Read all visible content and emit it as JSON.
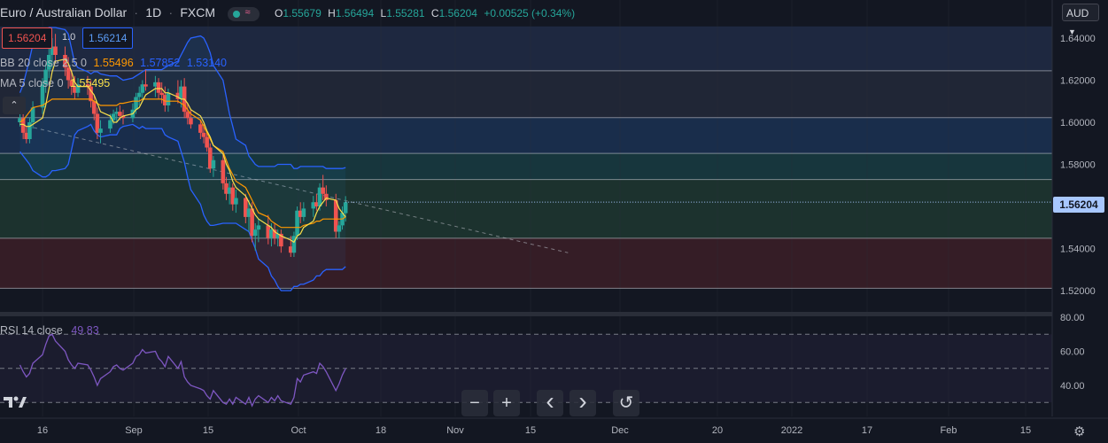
{
  "header": {
    "symbol": "Euro / Australian Dollar",
    "interval": "1D",
    "exchange": "FXCM",
    "ohlc": {
      "o_label": "O",
      "o": "1.55679",
      "h_label": "H",
      "h": "1.56494",
      "l_label": "L",
      "l": "1.55281",
      "c_label": "C",
      "c": "1.56204",
      "change": "+0.00525 (+0.34%)"
    }
  },
  "trade": {
    "sell": "1.56204",
    "spread": "1.0",
    "buy": "1.56214"
  },
  "indicators": {
    "bb": {
      "label": "BB 20 close 2.5 0",
      "basis": "1.55496",
      "upper": "1.57852",
      "lower": "1.53140"
    },
    "ma": {
      "label": "MA 5 close 0",
      "value": "1.55495"
    },
    "rsi": {
      "label": "RSI 14 close",
      "value": "49.83"
    }
  },
  "currency_selector": "AUD",
  "last_price_label": "1.56204",
  "price_axis": [
    "1.64000",
    "1.62000",
    "1.60000",
    "1.58000",
    "1.56000",
    "1.54000",
    "1.52000"
  ],
  "rsi_axis": [
    "80.00",
    "60.00",
    "40.00"
  ],
  "time_axis": [
    "16",
    "Sep",
    "15",
    "Oct",
    "18",
    "Nov",
    "15",
    "Dec",
    "20",
    "2022",
    "17",
    "Feb",
    "15"
  ],
  "nav_buttons": {
    "zoom_out": "−",
    "zoom_in": "+",
    "scroll_left": "‹",
    "scroll_right": "›",
    "reset": "↺"
  },
  "colors": {
    "background": "#131722",
    "up": "#26a69a",
    "down": "#ef5350",
    "bb_band": "#2962ff",
    "bb_basis": "#ff9800",
    "ma": "#f9e04b",
    "rsi": "#7e57c2",
    "last_price": "#a8c7ff"
  },
  "chart_data": [
    {
      "type": "candlestick",
      "title": "Euro / Australian Dollar · 1D · FXCM",
      "ylim": [
        1.51,
        1.65
      ],
      "price_levels": [
        1.6245,
        1.6022,
        1.5852,
        1.5728,
        1.5449,
        1.5211
      ],
      "trendline": {
        "from": [
          "Aug 9",
          1.599
        ],
        "to": [
          "Jan 26",
          1.538
        ]
      },
      "series": [
        {
          "name": "price",
          "points": [
            [
              "Aug 9",
              1.6,
              1.61,
              1.598,
              1.602
            ],
            [
              "Aug 10",
              1.602,
              1.604,
              1.592,
              1.595
            ],
            [
              "Aug 11",
              1.595,
              1.598,
              1.59,
              1.592
            ],
            [
              "Aug 12",
              1.592,
              1.602,
              1.59,
              1.6
            ],
            [
              "Aug 13",
              1.6,
              1.61,
              1.597,
              1.607
            ],
            [
              "Aug 16",
              1.607,
              1.621,
              1.604,
              1.618
            ],
            [
              "Aug 17",
              1.618,
              1.628,
              1.614,
              1.625
            ],
            [
              "Aug 18",
              1.625,
              1.636,
              1.621,
              1.632
            ],
            [
              "Aug 19",
              1.632,
              1.64,
              1.626,
              1.636
            ],
            [
              "Aug 20",
              1.636,
              1.642,
              1.628,
              1.632
            ],
            [
              "Aug 23",
              1.632,
              1.636,
              1.622,
              1.626
            ],
            [
              "Aug 24",
              1.626,
              1.631,
              1.616,
              1.62
            ],
            [
              "Aug 25",
              1.62,
              1.625,
              1.613,
              1.617
            ],
            [
              "Aug 26",
              1.617,
              1.622,
              1.611,
              1.614
            ],
            [
              "Aug 27",
              1.614,
              1.621,
              1.612,
              1.618
            ],
            [
              "Aug 30",
              1.618,
              1.622,
              1.613,
              1.617
            ],
            [
              "Aug 31",
              1.617,
              1.62,
              1.607,
              1.61
            ],
            [
              "Sep 1",
              1.61,
              1.613,
              1.601,
              1.604
            ],
            [
              "Sep 2",
              1.604,
              1.607,
              1.592,
              1.595
            ],
            [
              "Sep 3",
              1.595,
              1.601,
              1.59,
              1.597
            ],
            [
              "Sep 6",
              1.597,
              1.604,
              1.595,
              1.601
            ],
            [
              "Sep 7",
              1.601,
              1.606,
              1.599,
              1.604
            ],
            [
              "Sep 8",
              1.604,
              1.607,
              1.6,
              1.605
            ],
            [
              "Sep 9",
              1.605,
              1.608,
              1.601,
              1.603
            ],
            [
              "Sep 10",
              1.603,
              1.606,
              1.599,
              1.602
            ],
            [
              "Sep 13",
              1.602,
              1.609,
              1.6,
              1.606
            ],
            [
              "Sep 14",
              1.606,
              1.614,
              1.604,
              1.612
            ],
            [
              "Sep 15",
              1.612,
              1.617,
              1.608,
              1.614
            ],
            [
              "Sep 16",
              1.614,
              1.62,
              1.611,
              1.618
            ],
            [
              "Sep 17",
              1.618,
              1.625,
              1.615,
              1.617
            ],
            [
              "Sep 20",
              1.617,
              1.622,
              1.612,
              1.619
            ],
            [
              "Sep 21",
              1.619,
              1.621,
              1.611,
              1.614
            ],
            [
              "Sep 22",
              1.614,
              1.619,
              1.609,
              1.613
            ],
            [
              "Sep 23",
              1.613,
              1.617,
              1.605,
              1.608
            ],
            [
              "Sep 24",
              1.608,
              1.616,
              1.605,
              1.614
            ],
            [
              "Sep 27",
              1.614,
              1.62,
              1.609,
              1.611
            ],
            [
              "Sep 28",
              1.611,
              1.62,
              1.607,
              1.617
            ],
            [
              "Sep 29",
              1.617,
              1.621,
              1.602,
              1.605
            ],
            [
              "Sep 30",
              1.605,
              1.609,
              1.599,
              1.602
            ],
            [
              "Oct 1",
              1.602,
              1.606,
              1.597,
              1.599
            ],
            [
              "Oct 4",
              1.599,
              1.601,
              1.592,
              1.595
            ],
            [
              "Oct 5",
              1.595,
              1.599,
              1.59,
              1.593
            ],
            [
              "Oct 6",
              1.593,
              1.595,
              1.586,
              1.588
            ],
            [
              "Oct 7",
              1.588,
              1.59,
              1.576,
              1.578
            ],
            [
              "Oct 8",
              1.578,
              1.584,
              1.574,
              1.582
            ],
            [
              "Oct 11",
              1.582,
              1.585,
              1.568,
              1.571
            ],
            [
              "Oct 12",
              1.571,
              1.574,
              1.563,
              1.566
            ],
            [
              "Oct 13",
              1.566,
              1.572,
              1.561,
              1.569
            ],
            [
              "Oct 14",
              1.569,
              1.571,
              1.558,
              1.561
            ],
            [
              "Oct 15",
              1.561,
              1.568,
              1.557,
              1.564
            ],
            [
              "Oct 18",
              1.564,
              1.566,
              1.552,
              1.555
            ],
            [
              "Oct 19",
              1.555,
              1.563,
              1.548,
              1.559
            ],
            [
              "Oct 20",
              1.559,
              1.562,
              1.543,
              1.546
            ],
            [
              "Oct 21",
              1.546,
              1.552,
              1.539,
              1.549
            ],
            [
              "Oct 22",
              1.549,
              1.554,
              1.543,
              1.551
            ],
            [
              "Oct 25",
              1.551,
              1.556,
              1.542,
              1.545
            ],
            [
              "Oct 26",
              1.545,
              1.552,
              1.541,
              1.549
            ],
            [
              "Oct 27",
              1.549,
              1.552,
              1.542,
              1.545
            ],
            [
              "Oct 28",
              1.545,
              1.549,
              1.541,
              1.547
            ],
            [
              "Oct 29",
              1.547,
              1.549,
              1.538,
              1.541
            ],
            [
              "Nov 1",
              1.541,
              1.546,
              1.536,
              1.538
            ],
            [
              "Nov 2",
              1.538,
              1.548,
              1.536,
              1.546
            ],
            [
              "Nov 3",
              1.546,
              1.56,
              1.544,
              1.558
            ],
            [
              "Nov 4",
              1.558,
              1.562,
              1.552,
              1.555
            ],
            [
              "Nov 5",
              1.555,
              1.562,
              1.553,
              1.559
            ],
            [
              "Nov 8",
              1.559,
              1.565,
              1.555,
              1.562
            ],
            [
              "Nov 9",
              1.562,
              1.566,
              1.558,
              1.56
            ],
            [
              "Nov 10",
              1.56,
              1.571,
              1.558,
              1.569
            ],
            [
              "Nov 11",
              1.569,
              1.575,
              1.563,
              1.566
            ],
            [
              "Nov 12",
              1.566,
              1.57,
              1.56,
              1.563
            ],
            [
              "Nov 15",
              1.563,
              1.566,
              1.545,
              1.548
            ],
            [
              "Nov 16",
              1.548,
              1.553,
              1.545,
              1.551
            ],
            [
              "Nov 17",
              1.551,
              1.56,
              1.549,
              1.557
            ],
            [
              "Nov 18",
              1.5568,
              1.5649,
              1.5528,
              1.562
            ]
          ]
        },
        {
          "name": "BB 20 close 2.5 0 (basis)",
          "values": [
            1.6,
            1.601,
            1.603,
            1.605,
            1.607,
            1.608,
            1.609,
            1.61,
            1.611,
            1.611,
            1.611,
            1.611,
            1.611,
            1.611,
            1.611,
            1.611,
            1.611,
            1.61,
            1.609,
            1.608,
            1.608,
            1.608,
            1.608,
            1.609,
            1.609,
            1.61,
            1.61,
            1.61,
            1.611,
            1.611,
            1.611,
            1.611,
            1.611,
            1.61,
            1.61,
            1.61,
            1.609,
            1.608,
            1.606,
            1.604,
            1.601,
            1.598,
            1.595,
            1.592,
            1.589,
            1.586,
            1.582,
            1.578,
            1.575,
            1.572,
            1.569,
            1.566,
            1.563,
            1.56,
            1.557,
            1.555,
            1.553,
            1.552,
            1.551,
            1.55,
            1.55,
            1.55,
            1.55,
            1.55,
            1.551,
            1.552,
            1.553,
            1.553,
            1.554,
            1.554,
            1.554,
            1.554,
            1.554,
            1.555
          ]
        },
        {
          "name": "BB 20 close 2.5 0 (upper)",
          "values": [
            1.614,
            1.618,
            1.624,
            1.63,
            1.637,
            1.642,
            1.644,
            1.645,
            1.645,
            1.645,
            1.644,
            1.642,
            1.635,
            1.628,
            1.626,
            1.624,
            1.623,
            1.624,
            1.624,
            1.623,
            1.622,
            1.622,
            1.622,
            1.621,
            1.62,
            1.621,
            1.622,
            1.623,
            1.624,
            1.625,
            1.625,
            1.625,
            1.625,
            1.626,
            1.627,
            1.629,
            1.632,
            1.635,
            1.638,
            1.64,
            1.641,
            1.64,
            1.637,
            1.633,
            1.627,
            1.62,
            1.612,
            1.604,
            1.598,
            1.592,
            1.589,
            1.584,
            1.582,
            1.58,
            1.579,
            1.579,
            1.579,
            1.579,
            1.58,
            1.58,
            1.58,
            1.578,
            1.578,
            1.579,
            1.579,
            1.579,
            1.579,
            1.579,
            1.579,
            1.578,
            1.578,
            1.578,
            1.578,
            1.5785
          ]
        },
        {
          "name": "BB 20 close 2.5 0 (lower)",
          "values": [
            1.586,
            1.584,
            1.582,
            1.58,
            1.577,
            1.574,
            1.574,
            1.575,
            1.577,
            1.577,
            1.578,
            1.58,
            1.587,
            1.594,
            1.596,
            1.598,
            1.599,
            1.596,
            1.594,
            1.593,
            1.594,
            1.594,
            1.594,
            1.597,
            1.598,
            1.599,
            1.598,
            1.597,
            1.598,
            1.597,
            1.597,
            1.597,
            1.597,
            1.594,
            1.593,
            1.591,
            1.586,
            1.581,
            1.574,
            1.568,
            1.561,
            1.556,
            1.553,
            1.551,
            1.551,
            1.552,
            1.552,
            1.552,
            1.552,
            1.552,
            1.549,
            1.548,
            1.544,
            1.54,
            1.535,
            1.531,
            1.527,
            1.525,
            1.522,
            1.52,
            1.52,
            1.522,
            1.522,
            1.523,
            1.523,
            1.525,
            1.527,
            1.527,
            1.529,
            1.53,
            1.53,
            1.53,
            1.53,
            1.5314
          ]
        },
        {
          "name": "MA 5 close 0",
          "values": [
            1.599,
            1.599,
            1.598,
            1.598,
            1.599,
            1.602,
            1.608,
            1.616,
            1.624,
            1.629,
            1.63,
            1.628,
            1.624,
            1.619,
            1.617,
            1.617,
            1.615,
            1.613,
            1.609,
            1.605,
            1.603,
            1.6,
            1.6,
            1.602,
            1.603,
            1.604,
            1.606,
            1.607,
            1.61,
            1.613,
            1.616,
            1.616,
            1.616,
            1.614,
            1.614,
            1.612,
            1.611,
            1.611,
            1.609,
            1.606,
            1.603,
            1.6,
            1.596,
            1.593,
            1.589,
            1.585,
            1.58,
            1.577,
            1.572,
            1.569,
            1.565,
            1.562,
            1.559,
            1.556,
            1.554,
            1.551,
            1.55,
            1.548,
            1.547,
            1.546,
            1.544,
            1.543,
            1.546,
            1.547,
            1.55,
            1.553,
            1.557,
            1.56,
            1.562,
            1.564,
            1.563,
            1.559,
            1.557,
            1.555
          ]
        }
      ]
    },
    {
      "type": "line",
      "title": "RSI 14 close",
      "ylim": [
        25,
        85
      ],
      "levels": [
        70,
        50,
        30
      ],
      "series": [
        {
          "name": "RSI 14 close",
          "values": [
            52,
            48,
            45,
            47,
            53,
            58,
            64,
            69,
            70,
            66,
            60,
            55,
            52,
            50,
            53,
            52,
            49,
            45,
            40,
            44,
            48,
            51,
            52,
            50,
            49,
            53,
            57,
            58,
            61,
            59,
            60,
            56,
            54,
            51,
            57,
            50,
            54,
            45,
            42,
            40,
            38,
            37,
            34,
            32,
            37,
            30,
            29,
            32,
            29,
            33,
            29,
            33,
            28,
            32,
            34,
            30,
            33,
            31,
            34,
            31,
            29,
            33,
            44,
            42,
            46,
            48,
            47,
            53,
            51,
            48,
            37,
            41,
            46,
            49.83
          ]
        }
      ]
    }
  ]
}
